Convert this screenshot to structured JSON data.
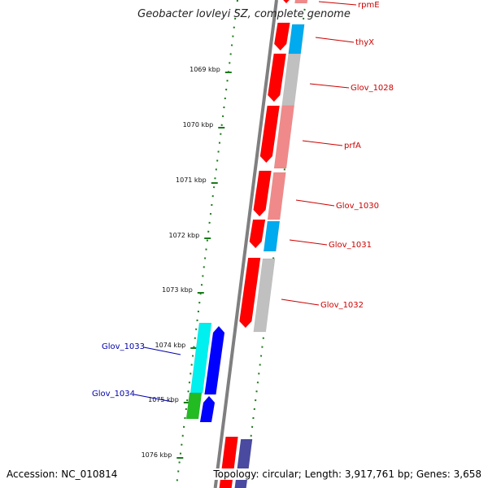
{
  "title": "Geobacter lovleyi SZ, complete genome",
  "footer": {
    "accession": "Accession: NC_010814",
    "summary": "Topology: circular; Length: 3,917,761 bp; Genes: 3,658"
  },
  "colors": {
    "backbone": "#7f7f7f",
    "tick": "#1a7a1a",
    "forward_label": "#cc0000",
    "reverse_label": "#0000aa",
    "red": "#ff0000",
    "light_red": "#f08a8a",
    "gray": "#c0c0c0",
    "sky": "#00aaee",
    "cyan": "#00f0f0",
    "blue": "#0000ff",
    "green": "#22bb22",
    "purple": "#4a4aa0"
  },
  "ticks": [
    {
      "label": "1069 kbp"
    },
    {
      "label": "1070 kbp"
    },
    {
      "label": "1071 kbp"
    },
    {
      "label": "1072 kbp"
    },
    {
      "label": "1073 kbp"
    },
    {
      "label": "1074 kbp"
    },
    {
      "label": "1075 kbp"
    },
    {
      "label": "1076 kbp"
    }
  ],
  "forward_genes": [
    {
      "name": "rpmE",
      "color": "light_red"
    },
    {
      "name": "thyX",
      "color": "sky"
    },
    {
      "name": "Glov_1028",
      "color": "gray"
    },
    {
      "name": "prfA",
      "color": "light_red"
    },
    {
      "name": "Glov_1030",
      "color": "light_red"
    },
    {
      "name": "Glov_1031",
      "color": "sky"
    },
    {
      "name": "Glov_1032",
      "color": "gray"
    }
  ],
  "reverse_genes": [
    {
      "name": "Glov_1033",
      "color": "cyan"
    },
    {
      "name": "Glov_1034",
      "color": "green"
    }
  ]
}
